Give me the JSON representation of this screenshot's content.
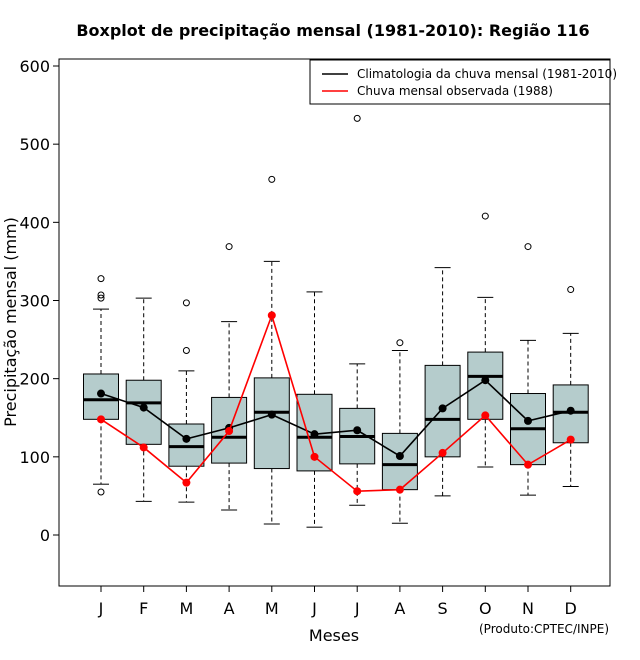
{
  "chart_data": {
    "type": "boxplot",
    "title": "Boxplot de precipitação mensal (1981-2010): Região 116",
    "xlabel": "Meses",
    "ylabel": "Precipitação mensal (mm)",
    "ylim": [
      -65,
      610
    ],
    "yticks": [
      0,
      100,
      200,
      300,
      400,
      500,
      600
    ],
    "categories": [
      "J",
      "F",
      "M",
      "A",
      "M",
      "J",
      "J",
      "A",
      "S",
      "O",
      "N",
      "D"
    ],
    "boxes": [
      {
        "whisker_low": 65,
        "q1": 148,
        "median": 173,
        "q3": 206,
        "whisker_high": 289,
        "outliers": [
          55,
          303,
          307,
          328
        ]
      },
      {
        "whisker_low": 43,
        "q1": 116,
        "median": 169,
        "q3": 198,
        "whisker_high": 303,
        "outliers": []
      },
      {
        "whisker_low": 42,
        "q1": 88,
        "median": 113,
        "q3": 142,
        "whisker_high": 210,
        "outliers": [
          236,
          297
        ]
      },
      {
        "whisker_low": 32,
        "q1": 92,
        "median": 125,
        "q3": 176,
        "whisker_high": 273,
        "outliers": [
          369
        ]
      },
      {
        "whisker_low": 14,
        "q1": 85,
        "median": 157,
        "q3": 201,
        "whisker_high": 350,
        "outliers": [
          455
        ]
      },
      {
        "whisker_low": 10,
        "q1": 82,
        "median": 125,
        "q3": 180,
        "whisker_high": 311,
        "outliers": []
      },
      {
        "whisker_low": 38,
        "q1": 91,
        "median": 126,
        "q3": 162,
        "whisker_high": 219,
        "outliers": [
          533
        ]
      },
      {
        "whisker_low": 15,
        "q1": 58,
        "median": 90,
        "q3": 130,
        "whisker_high": 236,
        "outliers": [
          246
        ]
      },
      {
        "whisker_low": 50,
        "q1": 100,
        "median": 148,
        "q3": 217,
        "whisker_high": 342,
        "outliers": []
      },
      {
        "whisker_low": 87,
        "q1": 148,
        "median": 203,
        "q3": 234,
        "whisker_high": 304,
        "outliers": [
          408
        ]
      },
      {
        "whisker_low": 51,
        "q1": 90,
        "median": 136,
        "q3": 181,
        "whisker_high": 249,
        "outliers": [
          369
        ]
      },
      {
        "whisker_low": 62,
        "q1": 118,
        "median": 157,
        "q3": 192,
        "whisker_high": 258,
        "outliers": [
          314
        ]
      }
    ],
    "series": [
      {
        "name": "Climatologia da chuva mensal (1981-2010)",
        "color": "#000000",
        "values": [
          181,
          163,
          123,
          137,
          154,
          129,
          134,
          101,
          162,
          198,
          146,
          159
        ]
      },
      {
        "name": "Chuva mensal observada (1988)",
        "color": "#ff0000",
        "values": [
          148,
          112,
          67,
          133,
          281,
          100,
          56,
          58,
          105,
          153,
          90,
          122
        ]
      }
    ],
    "box_fill": "#b5cccc",
    "legend_position": "top-right",
    "grid": false
  },
  "caption": "(Produto:CPTEC/INPE)"
}
